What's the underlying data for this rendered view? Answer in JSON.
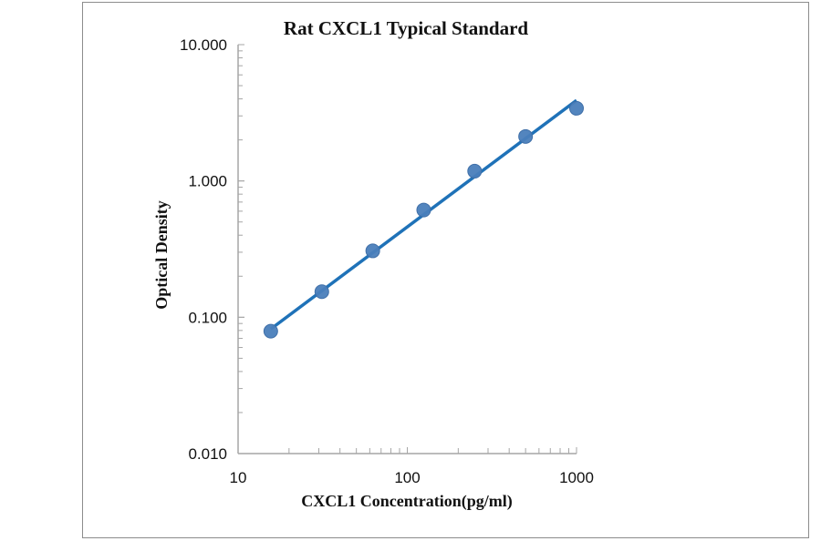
{
  "chart_data": {
    "type": "scatter",
    "title": "Rat CXCL1 Typical Standard",
    "xlabel": "CXCL1 Concentration(pg/ml)",
    "ylabel": "Optical Density",
    "x_scale": "log",
    "y_scale": "log",
    "xlim": [
      10,
      1000
    ],
    "ylim": [
      0.01,
      10
    ],
    "x_ticks": [
      "10",
      "100",
      "1000"
    ],
    "y_ticks": [
      "0.010",
      "0.100",
      "1.000",
      "10.000"
    ],
    "grid": false,
    "series": [
      {
        "x": [
          15.6,
          31.25,
          62.5,
          125,
          250,
          500,
          1000
        ],
        "y": [
          0.079,
          0.154,
          0.307,
          0.612,
          1.18,
          2.12,
          3.41
        ],
        "marker_color": "#4a7ebb",
        "trendline": {
          "type": "power",
          "color": "#1f72b8",
          "x_range": [
            15.6,
            1000
          ],
          "y_range": [
            0.082,
            3.9
          ]
        }
      }
    ]
  }
}
